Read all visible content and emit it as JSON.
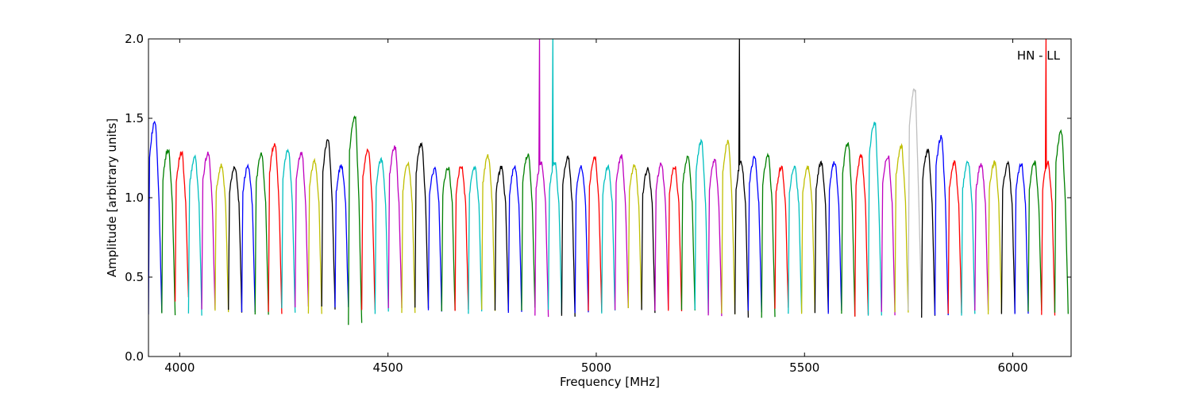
{
  "chart_data": {
    "type": "line",
    "title": "",
    "annotation": "HN - LL",
    "xlabel": "Frequency [MHz]",
    "ylabel": "Amplitude [arbitrary units]",
    "xlim": [
      3925,
      6140
    ],
    "ylim": [
      0.0,
      2.0
    ],
    "x_ticks": [
      4000,
      4500,
      5000,
      5500,
      6000
    ],
    "y_ticks": [
      "0.0",
      "0.5",
      "1.0",
      "1.5",
      "2.0"
    ],
    "grid": false,
    "legend": "none",
    "band_width_mhz": 32,
    "color_cycle": [
      "#0000ff",
      "#008000",
      "#ff0000",
      "#00bfbf",
      "#bf00bf",
      "#bfbf00",
      "#000000"
    ],
    "series": [
      {
        "color": "#0000ff",
        "x_start": 3925,
        "peak": 1.47,
        "min": 0.28
      },
      {
        "color": "#008000",
        "x_start": 3957,
        "peak": 1.3,
        "min": 0.26
      },
      {
        "color": "#ff0000",
        "x_start": 3989,
        "peak": 1.28,
        "min": 0.36
      },
      {
        "color": "#00bfbf",
        "x_start": 4021,
        "peak": 1.25,
        "min": 0.27
      },
      {
        "color": "#bf00bf",
        "x_start": 4053,
        "peak": 1.28,
        "min": 0.3
      },
      {
        "color": "#bfbf00",
        "x_start": 4085,
        "peak": 1.2,
        "min": 0.29
      },
      {
        "color": "#000000",
        "x_start": 4117,
        "peak": 1.19,
        "min": 0.29
      },
      {
        "color": "#0000ff",
        "x_start": 4149,
        "peak": 1.2,
        "min": 0.29
      },
      {
        "color": "#008000",
        "x_start": 4181,
        "peak": 1.27,
        "min": 0.27
      },
      {
        "color": "#ff0000",
        "x_start": 4213,
        "peak": 1.34,
        "min": 0.28
      },
      {
        "color": "#00bfbf",
        "x_start": 4245,
        "peak": 1.3,
        "min": 0.29
      },
      {
        "color": "#bf00bf",
        "x_start": 4277,
        "peak": 1.28,
        "min": 0.3
      },
      {
        "color": "#bfbf00",
        "x_start": 4309,
        "peak": 1.23,
        "min": 0.28
      },
      {
        "color": "#000000",
        "x_start": 4341,
        "peak": 1.36,
        "min": 0.3
      },
      {
        "color": "#0000ff",
        "x_start": 4373,
        "peak": 1.2,
        "min": 0.3
      },
      {
        "color": "#008000",
        "x_start": 4405,
        "peak": 1.5,
        "min": 0.2
      },
      {
        "color": "#ff0000",
        "x_start": 4437,
        "peak": 1.3,
        "min": 0.28
      },
      {
        "color": "#00bfbf",
        "x_start": 4469,
        "peak": 1.24,
        "min": 0.27
      },
      {
        "color": "#bf00bf",
        "x_start": 4501,
        "peak": 1.32,
        "min": 0.3
      },
      {
        "color": "#bfbf00",
        "x_start": 4533,
        "peak": 1.21,
        "min": 0.28
      },
      {
        "color": "#000000",
        "x_start": 4565,
        "peak": 1.34,
        "min": 0.3
      },
      {
        "color": "#0000ff",
        "x_start": 4597,
        "peak": 1.18,
        "min": 0.29
      },
      {
        "color": "#008000",
        "x_start": 4629,
        "peak": 1.19,
        "min": 0.28
      },
      {
        "color": "#ff0000",
        "x_start": 4661,
        "peak": 1.2,
        "min": 0.29
      },
      {
        "color": "#00bfbf",
        "x_start": 4693,
        "peak": 1.19,
        "min": 0.28
      },
      {
        "color": "#bfbf00",
        "x_start": 4725,
        "peak": 1.26,
        "min": 0.3
      },
      {
        "color": "#000000",
        "x_start": 4757,
        "peak": 1.19,
        "min": 0.29
      },
      {
        "color": "#0000ff",
        "x_start": 4789,
        "peak": 1.19,
        "min": 0.29
      },
      {
        "color": "#008000",
        "x_start": 4821,
        "peak": 1.27,
        "min": 0.3
      },
      {
        "color": "#bf00bf",
        "x_start": 4853,
        "peak": 2.0,
        "min": 0.26
      },
      {
        "color": "#00bfbf",
        "x_start": 4885,
        "peak": 2.0,
        "min": 0.28
      },
      {
        "color": "#000000",
        "x_start": 4917,
        "peak": 1.25,
        "min": 0.25
      },
      {
        "color": "#0000ff",
        "x_start": 4949,
        "peak": 1.19,
        "min": 0.28
      },
      {
        "color": "#ff0000",
        "x_start": 4981,
        "peak": 1.25,
        "min": 0.29
      },
      {
        "color": "#00bfbf",
        "x_start": 5013,
        "peak": 1.19,
        "min": 0.28
      },
      {
        "color": "#bf00bf",
        "x_start": 5045,
        "peak": 1.26,
        "min": 0.29
      },
      {
        "color": "#bfbf00",
        "x_start": 5077,
        "peak": 1.2,
        "min": 0.29
      },
      {
        "color": "#000000",
        "x_start": 5109,
        "peak": 1.18,
        "min": 0.28
      },
      {
        "color": "#bf00bf",
        "x_start": 5141,
        "peak": 1.21,
        "min": 0.29
      },
      {
        "color": "#ff0000",
        "x_start": 5173,
        "peak": 1.19,
        "min": 0.28
      },
      {
        "color": "#008000",
        "x_start": 5205,
        "peak": 1.26,
        "min": 0.29
      },
      {
        "color": "#00bfbf",
        "x_start": 5237,
        "peak": 1.35,
        "min": 0.28
      },
      {
        "color": "#bf00bf",
        "x_start": 5269,
        "peak": 1.23,
        "min": 0.26
      },
      {
        "color": "#bfbf00",
        "x_start": 5301,
        "peak": 1.35,
        "min": 0.28
      },
      {
        "color": "#000000",
        "x_start": 5333,
        "peak": 2.0,
        "min": 0.26
      },
      {
        "color": "#0000ff",
        "x_start": 5365,
        "peak": 1.25,
        "min": 0.28
      },
      {
        "color": "#008000",
        "x_start": 5397,
        "peak": 1.26,
        "min": 0.25
      },
      {
        "color": "#ff0000",
        "x_start": 5429,
        "peak": 1.19,
        "min": 0.3
      },
      {
        "color": "#00bfbf",
        "x_start": 5461,
        "peak": 1.19,
        "min": 0.28
      },
      {
        "color": "#bfbf00",
        "x_start": 5493,
        "peak": 1.19,
        "min": 0.28
      },
      {
        "color": "#000000",
        "x_start": 5525,
        "peak": 1.22,
        "min": 0.28
      },
      {
        "color": "#0000ff",
        "x_start": 5557,
        "peak": 1.22,
        "min": 0.28
      },
      {
        "color": "#008000",
        "x_start": 5589,
        "peak": 1.34,
        "min": 0.26
      },
      {
        "color": "#ff0000",
        "x_start": 5621,
        "peak": 1.26,
        "min": 0.25
      },
      {
        "color": "#00bfbf",
        "x_start": 5653,
        "peak": 1.47,
        "min": 0.26
      },
      {
        "color": "#bf00bf",
        "x_start": 5685,
        "peak": 1.26,
        "min": 0.27
      },
      {
        "color": "#bfbf00",
        "x_start": 5717,
        "peak": 1.32,
        "min": 0.28
      },
      {
        "color": "#bfbfbf",
        "x_start": 5749,
        "peak": 1.68,
        "min": 0.3
      },
      {
        "color": "#000000",
        "x_start": 5781,
        "peak": 1.3,
        "min": 0.25
      },
      {
        "color": "#0000ff",
        "x_start": 5813,
        "peak": 1.38,
        "min": 0.27
      },
      {
        "color": "#ff0000",
        "x_start": 5845,
        "peak": 1.22,
        "min": 0.28
      },
      {
        "color": "#00bfbf",
        "x_start": 5877,
        "peak": 1.22,
        "min": 0.27
      },
      {
        "color": "#bf00bf",
        "x_start": 5909,
        "peak": 1.21,
        "min": 0.28
      },
      {
        "color": "#bfbf00",
        "x_start": 5941,
        "peak": 1.22,
        "min": 0.28
      },
      {
        "color": "#000000",
        "x_start": 5973,
        "peak": 1.21,
        "min": 0.28
      },
      {
        "color": "#0000ff",
        "x_start": 6005,
        "peak": 1.21,
        "min": 0.28
      },
      {
        "color": "#008000",
        "x_start": 6037,
        "peak": 1.22,
        "min": 0.28
      },
      {
        "color": "#ff0000",
        "x_start": 6069,
        "peak": 2.0,
        "min": 0.27
      },
      {
        "color": "#008000",
        "x_start": 6101,
        "peak": 1.41,
        "min": 0.28
      }
    ]
  }
}
